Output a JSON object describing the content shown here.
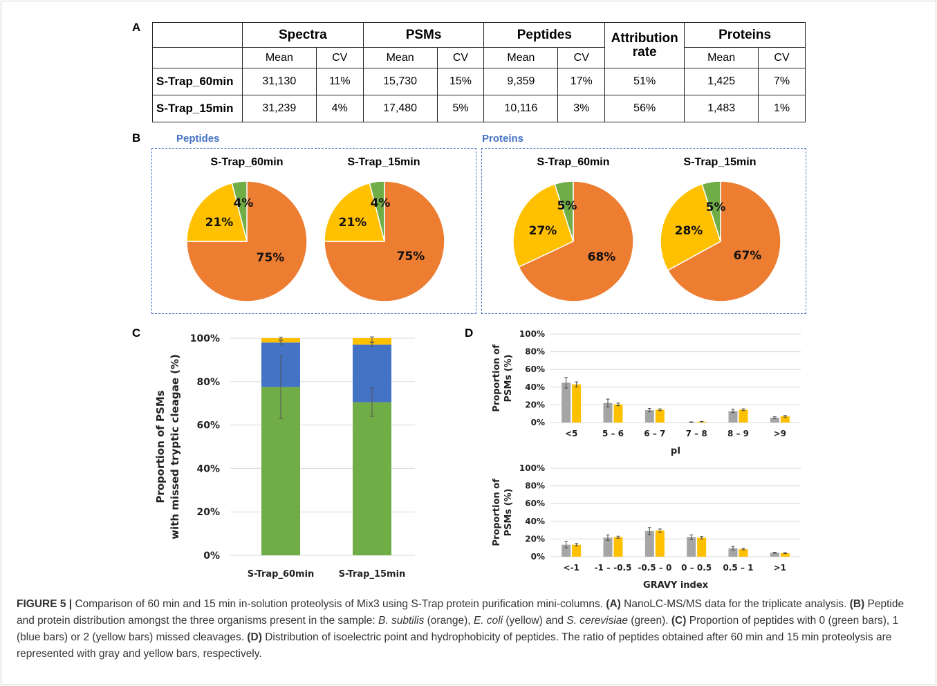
{
  "panel_labels": {
    "a": "A",
    "b": "B",
    "c": "C",
    "d": "D"
  },
  "table": {
    "headers": [
      "Spectra",
      "PSMs",
      "Peptides",
      "Attribution rate",
      "Proteins"
    ],
    "attribution_line1": "Attribution",
    "attribution_line2": "rate",
    "subheaders": [
      "Mean",
      "CV",
      "Mean",
      "CV",
      "Mean",
      "CV",
      "Mean",
      "CV"
    ],
    "rows": [
      {
        "label": "S-Trap_60min",
        "cells": [
          "31,130",
          "11%",
          "15,730",
          "15%",
          "9,359",
          "17%",
          "51%",
          "1,425",
          "7%"
        ]
      },
      {
        "label": "S-Trap_15min",
        "cells": [
          "31,239",
          "4%",
          "17,480",
          "5%",
          "10,116",
          "3%",
          "56%",
          "1,483",
          "1%"
        ]
      }
    ]
  },
  "pie_groups": {
    "peptides": "Peptides",
    "proteins": "Proteins"
  },
  "colors": {
    "orange": "#ed7d31",
    "yellow": "#ffc000",
    "green": "#70ad47",
    "blue": "#4472c4",
    "gray": "#a5a5a5",
    "dashed": "#4472c4"
  },
  "chart_data": [
    {
      "type": "table",
      "panel": "A",
      "columns": [
        "Spectra Mean",
        "Spectra CV",
        "PSMs Mean",
        "PSMs CV",
        "Peptides Mean",
        "Peptides CV",
        "Attribution rate",
        "Proteins Mean",
        "Proteins CV"
      ],
      "rows": [
        {
          "label": "S-Trap_60min",
          "values": [
            "31,130",
            "11%",
            "15,730",
            "15%",
            "9,359",
            "17%",
            "51%",
            "1,425",
            "7%"
          ]
        },
        {
          "label": "S-Trap_15min",
          "values": [
            "31,239",
            "4%",
            "17,480",
            "5%",
            "10,116",
            "3%",
            "56%",
            "1,483",
            "1%"
          ]
        }
      ]
    },
    {
      "type": "pie",
      "panel": "B",
      "group": "Peptides",
      "title": "S-Trap_60min",
      "slices": [
        {
          "value": 75,
          "label": "75%",
          "color": "#ed7d31"
        },
        {
          "value": 21,
          "label": "21%",
          "color": "#ffc000"
        },
        {
          "value": 4,
          "label": "4%",
          "color": "#70ad47"
        }
      ]
    },
    {
      "type": "pie",
      "panel": "B",
      "group": "Peptides",
      "title": "S-Trap_15min",
      "slices": [
        {
          "value": 75,
          "label": "75%",
          "color": "#ed7d31"
        },
        {
          "value": 21,
          "label": "21%",
          "color": "#ffc000"
        },
        {
          "value": 4,
          "label": "4%",
          "color": "#70ad47"
        }
      ]
    },
    {
      "type": "pie",
      "panel": "B",
      "group": "Proteins",
      "title": "S-Trap_60min",
      "slices": [
        {
          "value": 68,
          "label": "68%",
          "color": "#ed7d31"
        },
        {
          "value": 27,
          "label": "27%",
          "color": "#ffc000"
        },
        {
          "value": 5,
          "label": "5%",
          "color": "#70ad47"
        }
      ]
    },
    {
      "type": "pie",
      "panel": "B",
      "group": "Proteins",
      "title": "S-Trap_15min",
      "slices": [
        {
          "value": 67,
          "label": "67%",
          "color": "#ed7d31"
        },
        {
          "value": 28,
          "label": "28%",
          "color": "#ffc000"
        },
        {
          "value": 5,
          "label": "5%",
          "color": "#70ad47"
        }
      ]
    },
    {
      "type": "bar",
      "panel": "C",
      "stacked": true,
      "categories": [
        "S-Trap_60min",
        "S-Trap_15min"
      ],
      "ylabel_line1": "Proportion of PSMs",
      "ylabel_line2": "with missed tryptic cleagae (%)",
      "ylim": [
        0,
        100
      ],
      "yticks": [
        "0%",
        "20%",
        "40%",
        "60%",
        "80%",
        "100%"
      ],
      "grid": true,
      "series": [
        {
          "values": [
            77.5,
            70.5
          ],
          "err": [
            14.5,
            6.5
          ],
          "color": "#70ad47"
        },
        {
          "values": [
            20.5,
            26.5
          ],
          "err": [
            0.8,
            1.0
          ],
          "color": "#4472c4"
        },
        {
          "values": [
            2.0,
            3.0
          ],
          "err": [
            0.5,
            1.8
          ],
          "color": "#ffc000"
        }
      ]
    },
    {
      "type": "bar",
      "panel": "D",
      "categories": [
        "<5",
        "5 – 6",
        "6 – 7",
        "7 – 8",
        "8 – 9",
        ">9"
      ],
      "xlabel": "pI",
      "ylabel_line1": "Proportion of",
      "ylabel_line2": "PSMs (%)",
      "ylim": [
        0,
        100
      ],
      "yticks": [
        "0%",
        "20%",
        "40%",
        "60%",
        "80%",
        "100%"
      ],
      "grid": true,
      "series": [
        {
          "values": [
            45,
            22,
            14,
            0.5,
            13,
            5.5
          ],
          "err": [
            6,
            4.5,
            2,
            0.3,
            2,
            1
          ],
          "color": "#a5a5a5"
        },
        {
          "values": [
            43,
            20.5,
            14.5,
            1,
            14.5,
            7
          ],
          "err": [
            3,
            1.5,
            1,
            0.3,
            1,
            1
          ],
          "color": "#ffc000"
        }
      ]
    },
    {
      "type": "bar",
      "panel": "D",
      "categories": [
        "<-1",
        "-1 – -0.5",
        "-0.5 – 0",
        "0 – 0.5",
        "0.5 – 1",
        ">1"
      ],
      "xlabel": "GRAVY index",
      "ylabel_line1": "Proportion of",
      "ylabel_line2": "PSMs (%)",
      "ylim": [
        0,
        100
      ],
      "yticks": [
        "0%",
        "20%",
        "40%",
        "60%",
        "80%",
        "100%"
      ],
      "grid": true,
      "series": [
        {
          "values": [
            13.5,
            21.5,
            29,
            22,
            9.5,
            4.5
          ],
          "err": [
            3.5,
            3,
            4,
            2.5,
            2,
            0.5
          ],
          "color": "#a5a5a5"
        },
        {
          "values": [
            13.5,
            22,
            29.5,
            21.5,
            8.5,
            4
          ],
          "err": [
            1.5,
            1.2,
            1.8,
            1.5,
            0.8,
            0.5
          ],
          "color": "#ffc000"
        }
      ]
    }
  ],
  "caption": {
    "lead": "FIGURE 5 |",
    "title": " Comparison of 60 min and 15 min in-solution proteolysis of Mix3 using S-Trap protein purification mini-columns. ",
    "a_tag": "(A)",
    "a_text": " NanoLC-MS/MS data for the triplicate analysis. ",
    "b_tag": "(B)",
    "b_text1": " Peptide and protein distribution amongst the three organisms present in the sample: ",
    "org1": "B. subtilis",
    "b_text2": " (orange), ",
    "org2": "E. coli",
    "b_text3": " (yellow) and ",
    "org3": "S. cerevisiae",
    "b_text4": " (green). ",
    "c_tag": "(C)",
    "c_text": " Proportion of peptides with 0 (green bars), 1 (blue bars) or 2 (yellow bars) missed cleavages. ",
    "d_tag": "(D)",
    "d_text": " Distribution of isoelectric point and hydrophobicity of peptides. The ratio of peptides obtained after 60 min and 15 min proteolysis are represented with gray and yellow bars, respectively."
  }
}
